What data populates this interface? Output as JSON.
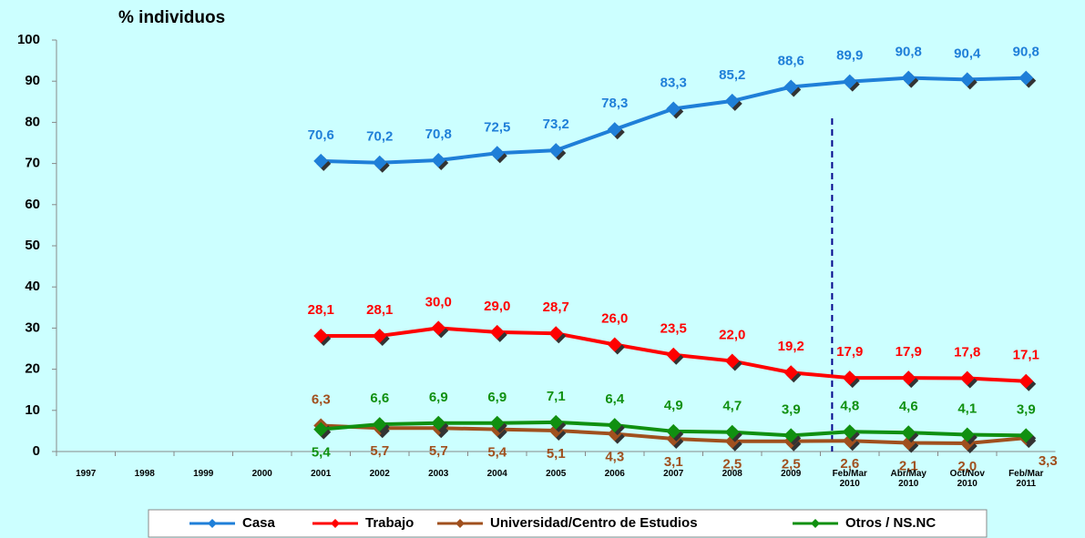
{
  "chart_data": {
    "type": "line",
    "y_axis_label": "% individuos",
    "categories": [
      "1997",
      "1998",
      "1999",
      "2000",
      "2001",
      "2002",
      "2003",
      "2004",
      "2005",
      "2006",
      "2007",
      "2008",
      "2009",
      "Feb/Mar\n2010",
      "Abr/May\n2010",
      "Oct/Nov\n2010",
      "Feb/Mar\n2011"
    ],
    "ylim": [
      0,
      100
    ],
    "yticks": [
      0,
      10,
      20,
      30,
      40,
      50,
      60,
      70,
      80,
      90,
      100
    ],
    "legend": "bottom",
    "series": [
      {
        "name": "Casa",
        "color": "#1f7fd8",
        "values": [
          null,
          null,
          null,
          null,
          70.6,
          70.2,
          70.8,
          72.5,
          73.2,
          78.3,
          83.3,
          85.2,
          88.6,
          89.9,
          90.8,
          90.4,
          90.8
        ],
        "value_labels": [
          null,
          null,
          null,
          null,
          "70,6",
          "70,2",
          "70,8",
          "72,5",
          "73,2",
          "78,3",
          "83,3",
          "85,2",
          "88,6",
          "89,9",
          "90,8",
          "90,4",
          "90,8"
        ]
      },
      {
        "name": "Trabajo",
        "color": "#ff0000",
        "values": [
          null,
          null,
          null,
          null,
          28.1,
          28.1,
          30.0,
          29.0,
          28.7,
          26.0,
          23.5,
          22.0,
          19.2,
          17.9,
          17.9,
          17.8,
          17.1
        ],
        "value_labels": [
          null,
          null,
          null,
          null,
          "28,1",
          "28,1",
          "30,0",
          "29,0",
          "28,7",
          "26,0",
          "23,5",
          "22,0",
          "19,2",
          "17,9",
          "17,9",
          "17,8",
          "17,1"
        ]
      },
      {
        "name": "Universidad/Centro de Estudios",
        "color": "#a0501e",
        "values": [
          null,
          null,
          null,
          null,
          6.3,
          5.7,
          5.7,
          5.4,
          5.1,
          4.3,
          3.1,
          2.5,
          2.5,
          2.6,
          2.1,
          2.0,
          3.3
        ],
        "value_labels": [
          null,
          null,
          null,
          null,
          "6,3",
          "5,7",
          "5,7",
          "5,4",
          "5,1",
          "4,3",
          "3,1",
          "2,5",
          "2,5",
          "2,6",
          "2,1",
          "2,0",
          "3,3"
        ]
      },
      {
        "name": "Otros / NS.NC",
        "color": "#109010",
        "values": [
          null,
          null,
          null,
          null,
          5.4,
          6.6,
          6.9,
          6.9,
          7.1,
          6.4,
          4.9,
          4.7,
          3.9,
          4.8,
          4.6,
          4.1,
          3.9
        ],
        "value_labels": [
          null,
          null,
          null,
          null,
          "5,4",
          "6,6",
          "6,9",
          "6,9",
          "7,1",
          "6,4",
          "4,9",
          "4,7",
          "3,9",
          "4,8",
          "4,6",
          "4,1",
          "3,9"
        ]
      }
    ]
  }
}
